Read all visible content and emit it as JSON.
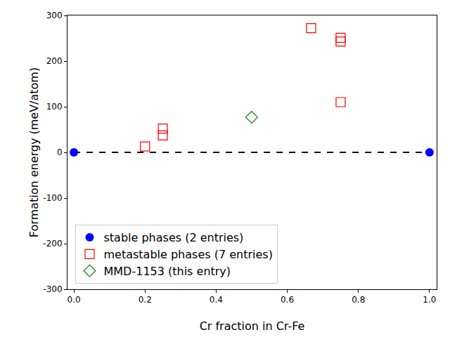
{
  "chart_data": {
    "type": "scatter",
    "x_label": "Cr fraction in Cr-Fe",
    "y_label": "Formation energy (meV/atom)",
    "xlim": [
      -0.018,
      1.02
    ],
    "ylim": [
      -300,
      300
    ],
    "xticks": [
      {
        "value": 0,
        "label": "0.0"
      },
      0.2,
      0.4,
      0.6,
      0.8,
      {
        "value": 1,
        "label": "1.0"
      }
    ],
    "yticks": [
      -300,
      -200,
      -100,
      0,
      100,
      200,
      300
    ],
    "grid": false,
    "legend": "lower left",
    "series": [
      {
        "type": "line",
        "line_style": "dashed",
        "color": "#000000",
        "x": [
          0,
          1
        ],
        "values": [
          0,
          0
        ]
      },
      {
        "name": "stable phases (2 entries)",
        "color": "#0000ff",
        "marker": "circle",
        "x": [
          0,
          1
        ],
        "values": [
          0,
          0
        ]
      },
      {
        "name": "metastable phases (7 entries)",
        "color": "#ff0000",
        "marker": "square-open",
        "x": [
          0.2,
          0.25,
          0.25,
          0.667,
          0.75,
          0.75,
          0.75
        ],
        "values": [
          13,
          37,
          52,
          272,
          243,
          251,
          110
        ]
      },
      {
        "name": "MMD-1153 (this entry)",
        "color": "#008000",
        "marker": "diamond-open",
        "x": [
          0.5
        ],
        "values": [
          77
        ]
      }
    ]
  }
}
